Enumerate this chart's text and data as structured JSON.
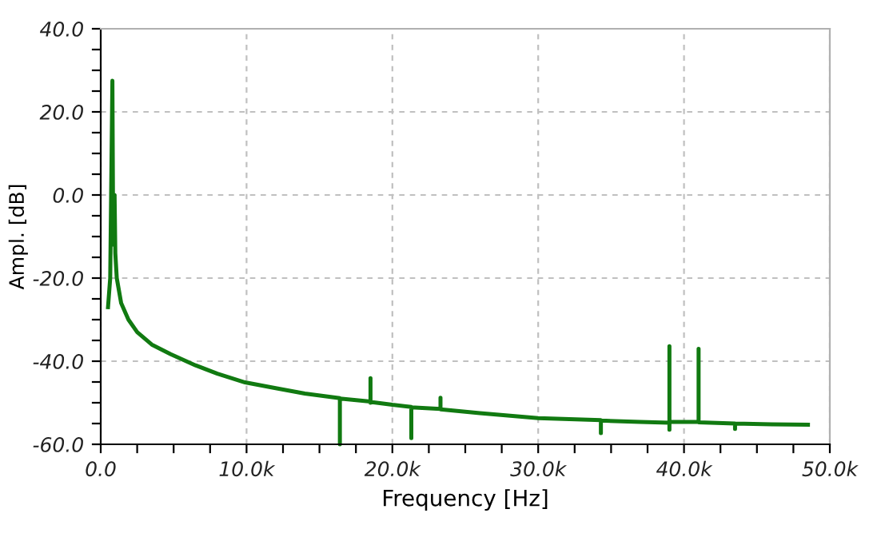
{
  "chart_data": {
    "type": "line",
    "xlabel": "Frequency [Hz]",
    "ylabel": "Ampl. [dB]",
    "xlim": [
      0,
      50000
    ],
    "ylim": [
      -60,
      40
    ],
    "xticks": [
      {
        "value": 0,
        "label": "0.0"
      },
      {
        "value": 2500,
        "label": null
      },
      {
        "value": 5000,
        "label": null
      },
      {
        "value": 7500,
        "label": null
      },
      {
        "value": 10000,
        "label": "10.0k"
      },
      {
        "value": 12500,
        "label": null
      },
      {
        "value": 15000,
        "label": null
      },
      {
        "value": 17500,
        "label": null
      },
      {
        "value": 20000,
        "label": "20.0k"
      },
      {
        "value": 22500,
        "label": null
      },
      {
        "value": 25000,
        "label": null
      },
      {
        "value": 27500,
        "label": null
      },
      {
        "value": 30000,
        "label": "30.0k"
      },
      {
        "value": 32500,
        "label": null
      },
      {
        "value": 35000,
        "label": null
      },
      {
        "value": 37500,
        "label": null
      },
      {
        "value": 40000,
        "label": "40.0k"
      },
      {
        "value": 42500,
        "label": null
      },
      {
        "value": 45000,
        "label": null
      },
      {
        "value": 47500,
        "label": null
      },
      {
        "value": 50000,
        "label": "50.0k"
      }
    ],
    "yticks": [
      {
        "value": -60,
        "label": "-60.0"
      },
      {
        "value": -55,
        "label": null
      },
      {
        "value": -50,
        "label": null
      },
      {
        "value": -45,
        "label": null
      },
      {
        "value": -40,
        "label": "-40.0"
      },
      {
        "value": -35,
        "label": null
      },
      {
        "value": -30,
        "label": null
      },
      {
        "value": -25,
        "label": null
      },
      {
        "value": -20,
        "label": "-20.0"
      },
      {
        "value": -15,
        "label": null
      },
      {
        "value": -10,
        "label": null
      },
      {
        "value": -5,
        "label": null
      },
      {
        "value": 0,
        "label": "0.0"
      },
      {
        "value": 5,
        "label": null
      },
      {
        "value": 10,
        "label": null
      },
      {
        "value": 15,
        "label": null
      },
      {
        "value": 20,
        "label": "20.0"
      },
      {
        "value": 25,
        "label": null
      },
      {
        "value": 30,
        "label": null
      },
      {
        "value": 35,
        "label": null
      },
      {
        "value": 40,
        "label": "40.0"
      }
    ],
    "grid": true,
    "line_style": "solid",
    "marker": "none",
    "series": [
      {
        "color": "#117a11",
        "x": [
          500,
          650,
          800,
          850,
          900,
          950,
          1000,
          1100,
          1400,
          1900,
          2500,
          3500,
          4800,
          6500,
          8000,
          9900,
          12000,
          14000,
          16400,
          16400,
          16400,
          18500,
          18500,
          18500,
          18500,
          20000,
          21300,
          21300,
          21300,
          23300,
          23300,
          23300,
          26000,
          30000,
          34300,
          34300,
          34300,
          37000,
          39000,
          39000,
          39000,
          39000,
          41000,
          41000,
          41000,
          43500,
          43500,
          43500,
          46000,
          48500
        ],
        "values": [
          -27,
          -20,
          27.5,
          -8,
          -12,
          0,
          -14,
          -20,
          -26,
          -30,
          -33,
          -36,
          -38.3,
          -41,
          -43,
          -45.1,
          -46.5,
          -47.8,
          -48.9,
          -60,
          -49,
          -49.7,
          -44.1,
          -50,
          -49.8,
          -50.5,
          -51,
          -58.5,
          -51.1,
          -51.5,
          -48.8,
          -51.6,
          -52.5,
          -53.7,
          -54.2,
          -57.3,
          -54.3,
          -54.6,
          -54.8,
          -36.4,
          -56.5,
          -54.6,
          -54.6,
          -37,
          -54.7,
          -55,
          -56.3,
          -55,
          -55.2,
          -55.3
        ]
      }
    ]
  }
}
